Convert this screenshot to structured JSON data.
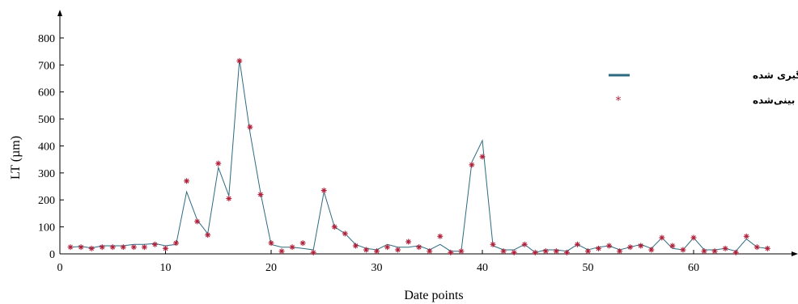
{
  "chart_data": {
    "type": "line",
    "title": "",
    "xlabel": "Date points",
    "ylabel": "LT (µm)",
    "xlim": [
      0,
      70
    ],
    "ylim": [
      0,
      900
    ],
    "x_ticks": [
      0,
      10,
      20,
      30,
      40,
      50,
      60
    ],
    "y_ticks": [
      0,
      100,
      200,
      300,
      400,
      500,
      600,
      700,
      800
    ],
    "grid": false,
    "legend_position": "top-right",
    "colors": {
      "measured": "#2e6a80",
      "predicted": "#b0203a"
    },
    "series": [
      {
        "name": "مقدار اندازه گیری شده",
        "style": "line",
        "x": [
          1,
          2,
          3,
          4,
          5,
          6,
          7,
          8,
          9,
          10,
          11,
          12,
          13,
          14,
          15,
          16,
          17,
          18,
          19,
          20,
          21,
          22,
          23,
          24,
          25,
          26,
          27,
          28,
          29,
          30,
          31,
          32,
          33,
          34,
          35,
          36,
          37,
          38,
          39,
          40,
          41,
          42,
          43,
          44,
          45,
          46,
          47,
          48,
          49,
          50,
          51,
          52,
          53,
          54,
          55,
          56,
          57,
          58,
          59,
          60,
          61,
          62,
          63,
          64,
          65,
          66,
          67
        ],
        "y": [
          25,
          28,
          22,
          30,
          30,
          30,
          35,
          35,
          38,
          30,
          35,
          230,
          125,
          75,
          320,
          215,
          720,
          450,
          225,
          35,
          25,
          25,
          20,
          15,
          230,
          100,
          75,
          35,
          20,
          15,
          35,
          25,
          25,
          30,
          15,
          35,
          10,
          10,
          340,
          420,
          30,
          15,
          15,
          35,
          5,
          15,
          15,
          10,
          35,
          15,
          25,
          30,
          15,
          25,
          35,
          20,
          60,
          20,
          15,
          60,
          15,
          15,
          20,
          10,
          55,
          25,
          20
        ]
      },
      {
        "name": "مقدار پیش بینی‌شده",
        "style": "markers",
        "x": [
          1,
          2,
          3,
          4,
          5,
          6,
          7,
          8,
          9,
          10,
          11,
          12,
          13,
          14,
          15,
          16,
          17,
          18,
          19,
          20,
          21,
          22,
          23,
          24,
          25,
          26,
          27,
          28,
          29,
          30,
          31,
          32,
          33,
          34,
          35,
          36,
          37,
          38,
          39,
          40,
          41,
          42,
          43,
          44,
          45,
          46,
          47,
          48,
          49,
          50,
          51,
          52,
          53,
          54,
          55,
          56,
          57,
          58,
          59,
          60,
          61,
          62,
          63,
          64,
          65,
          66,
          67
        ],
        "y": [
          25,
          25,
          20,
          25,
          25,
          25,
          25,
          25,
          35,
          20,
          40,
          270,
          120,
          70,
          335,
          205,
          715,
          470,
          220,
          40,
          10,
          25,
          40,
          5,
          235,
          100,
          75,
          30,
          15,
          10,
          25,
          15,
          45,
          25,
          10,
          65,
          5,
          10,
          330,
          360,
          35,
          10,
          5,
          35,
          5,
          10,
          10,
          5,
          35,
          10,
          20,
          30,
          10,
          25,
          30,
          15,
          60,
          30,
          15,
          60,
          10,
          10,
          20,
          5,
          65,
          25,
          20
        ]
      }
    ]
  }
}
